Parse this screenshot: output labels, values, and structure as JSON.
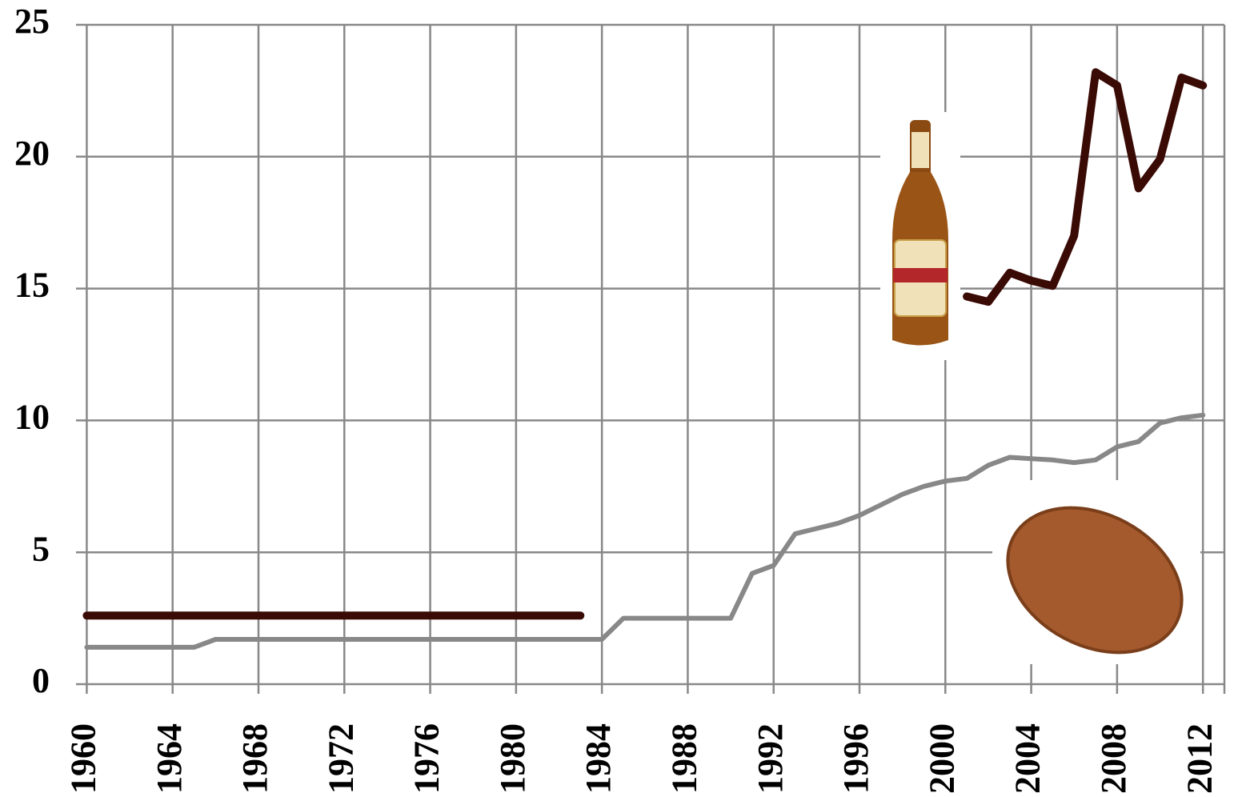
{
  "chart_data": {
    "type": "line",
    "x": [
      1960,
      1961,
      1962,
      1963,
      1964,
      1965,
      1966,
      1967,
      1968,
      1969,
      1970,
      1971,
      1972,
      1973,
      1974,
      1975,
      1976,
      1977,
      1978,
      1979,
      1980,
      1981,
      1982,
      1983,
      1984,
      1985,
      1986,
      1987,
      1988,
      1989,
      1990,
      1991,
      1992,
      1993,
      1994,
      1995,
      1996,
      1997,
      1998,
      1999,
      2000,
      2001,
      2002,
      2003,
      2004,
      2005,
      2006,
      2007,
      2008,
      2009,
      2010,
      2011,
      2012
    ],
    "series": [
      {
        "color": "#888888",
        "values": [
          1.4,
          1.4,
          1.4,
          1.4,
          1.4,
          1.4,
          1.7,
          1.7,
          1.7,
          1.7,
          1.7,
          1.7,
          1.7,
          1.7,
          1.7,
          1.7,
          1.7,
          1.7,
          1.7,
          1.7,
          1.7,
          1.7,
          1.7,
          1.7,
          1.7,
          2.5,
          2.5,
          2.5,
          2.5,
          2.5,
          2.5,
          4.2,
          4.5,
          5.7,
          5.9,
          6.1,
          6.4,
          6.8,
          7.2,
          7.5,
          7.7,
          7.8,
          8.3,
          8.6,
          8.55,
          8.5,
          8.4,
          8.5,
          9.0,
          9.2,
          9.9,
          10.1,
          10.2
        ]
      },
      {
        "color": "#3a0a05",
        "values": [
          2.6,
          2.6,
          2.6,
          2.6,
          2.6,
          2.6,
          2.6,
          2.6,
          2.6,
          2.6,
          2.6,
          2.6,
          2.6,
          2.6,
          2.6,
          2.6,
          2.6,
          2.6,
          2.6,
          2.6,
          2.6,
          2.6,
          2.6,
          2.6,
          null,
          null,
          null,
          null,
          null,
          null,
          null,
          null,
          null,
          null,
          null,
          null,
          null,
          null,
          null,
          null,
          null,
          14.7,
          14.5,
          15.6,
          15.3,
          15.1,
          17.0,
          23.2,
          22.7,
          18.8,
          19.9,
          23.0,
          22.7
        ]
      }
    ],
    "xlim": [
      1959.5,
      2013
    ],
    "xticks": [
      1960,
      1964,
      1968,
      1972,
      1976,
      1980,
      1984,
      1988,
      1992,
      1996,
      2000,
      2004,
      2008,
      2012
    ],
    "ylim": [
      0,
      25
    ],
    "yticks": [
      0,
      5,
      10,
      15,
      20,
      25
    ],
    "grid": true
  }
}
